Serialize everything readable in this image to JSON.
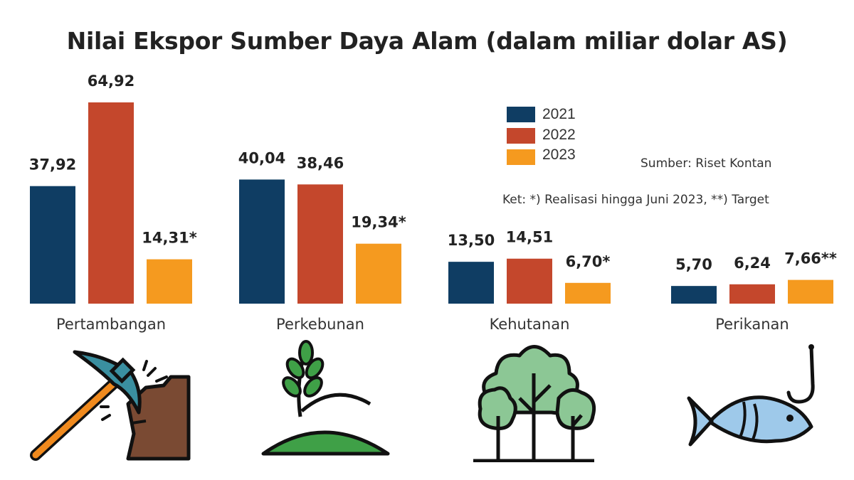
{
  "chart_data": {
    "type": "bar",
    "title": "Nilai Ekspor Sumber Daya Alam (dalam miliar dolar AS)",
    "categories": [
      "Pertambangan",
      "Perkebunan",
      "Kehutanan",
      "Perikanan"
    ],
    "series": [
      {
        "name": "2021",
        "color": "#0f3d63",
        "values": [
          37.92,
          40.04,
          13.5,
          5.7
        ]
      },
      {
        "name": "2022",
        "color": "#c4472c",
        "values": [
          64.92,
          38.46,
          14.51,
          6.24
        ]
      },
      {
        "name": "2023",
        "color": "#f59a1f",
        "values": [
          14.31,
          19.34,
          6.7,
          7.66
        ]
      }
    ],
    "data_labels": [
      [
        "37,92",
        "64,92",
        "14,31*"
      ],
      [
        "40,04",
        "38,46",
        "19,34*"
      ],
      [
        "13,50",
        "14,51",
        "6,70*"
      ],
      [
        "5,70",
        "6,24",
        "7,66**"
      ]
    ],
    "legend_position": "top-right",
    "grid": false,
    "ylim": [
      0,
      70
    ],
    "source": "Sumber: Riset Kontan",
    "note": "Ket: *) Realisasi hingga Juni 2023, **) Target"
  },
  "icons": [
    "pickaxe-icon",
    "plant-sprout-icon",
    "trees-icon",
    "fish-hook-icon"
  ]
}
